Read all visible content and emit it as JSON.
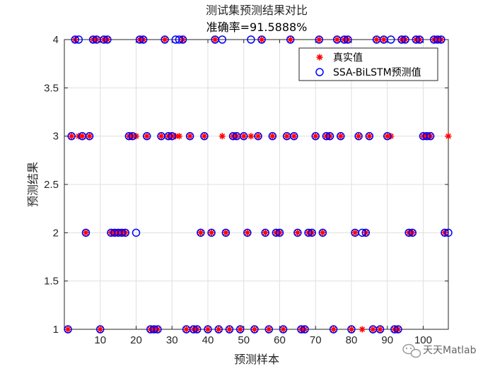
{
  "chart_data": {
    "type": "scatter",
    "title": "测试集预测结果对比",
    "subtitle": "准确率=91.5888%",
    "xlabel": "预测样本",
    "ylabel": "预测结果",
    "xlim": [
      0,
      107
    ],
    "ylim": [
      1,
      4
    ],
    "xticks": [
      10,
      20,
      30,
      40,
      50,
      60,
      70,
      80,
      90,
      100
    ],
    "yticks": [
      1,
      1.5,
      2,
      2.5,
      3,
      3.5,
      4
    ],
    "ytick_labels": [
      "1",
      "1.5",
      "2",
      "2.5",
      "3",
      "3.5",
      "4"
    ],
    "grid": true,
    "legend_position": "top-right",
    "series": [
      {
        "name": "真实值",
        "marker": "asterisk",
        "color": "#ff0000",
        "x": [
          1,
          2,
          3,
          4,
          5,
          6,
          7,
          8,
          9,
          10,
          11,
          12,
          13,
          14,
          15,
          16,
          17,
          18,
          19,
          20,
          21,
          22,
          23,
          24,
          25,
          26,
          27,
          28,
          29,
          30,
          31,
          32,
          33,
          34,
          35,
          36,
          37,
          38,
          39,
          40,
          41,
          42,
          43,
          44,
          45,
          46,
          47,
          48,
          49,
          50,
          51,
          52,
          53,
          54,
          55,
          56,
          57,
          58,
          59,
          60,
          61,
          62,
          63,
          64,
          65,
          66,
          67,
          68,
          69,
          70,
          71,
          72,
          73,
          74,
          75,
          76,
          77,
          78,
          79,
          80,
          81,
          82,
          83,
          84,
          85,
          86,
          87,
          88,
          89,
          90,
          91,
          92,
          93,
          94,
          95,
          96,
          97,
          98,
          99,
          100,
          101,
          102,
          103,
          104,
          105,
          106,
          107
        ],
        "y": [
          1,
          3,
          4,
          3,
          3,
          2,
          3,
          4,
          4,
          1,
          4,
          4,
          2,
          2,
          2,
          2,
          2,
          3,
          3,
          3,
          4,
          4,
          3,
          1,
          1,
          1,
          3,
          4,
          3,
          3,
          3,
          3,
          4,
          1,
          3,
          1,
          1,
          2,
          3,
          1,
          2,
          4,
          1,
          3,
          2,
          1,
          3,
          3,
          1,
          3,
          2,
          3,
          1,
          3,
          4,
          2,
          1,
          3,
          2,
          2,
          1,
          3,
          4,
          3,
          2,
          1,
          1,
          2,
          2,
          3,
          4,
          2,
          3,
          3,
          1,
          4,
          3,
          4,
          4,
          1,
          2,
          3,
          1,
          2,
          3,
          1,
          4,
          1,
          4,
          3,
          3,
          1,
          1,
          4,
          4,
          2,
          2,
          4,
          4,
          3,
          3,
          3,
          4,
          4,
          4,
          2,
          3
        ]
      },
      {
        "name": "SSA-BiLSTM预测值",
        "marker": "circle",
        "color": "#0000ff",
        "x": [
          1,
          2,
          3,
          4,
          5,
          6,
          7,
          8,
          9,
          10,
          11,
          12,
          13,
          14,
          15,
          16,
          17,
          18,
          19,
          20,
          21,
          22,
          23,
          24,
          25,
          26,
          27,
          28,
          29,
          30,
          31,
          32,
          33,
          34,
          35,
          36,
          37,
          38,
          39,
          40,
          41,
          42,
          43,
          44,
          45,
          46,
          47,
          48,
          49,
          50,
          51,
          52,
          53,
          54,
          55,
          56,
          57,
          58,
          59,
          60,
          61,
          62,
          63,
          64,
          65,
          66,
          67,
          68,
          69,
          70,
          71,
          72,
          73,
          74,
          75,
          76,
          77,
          78,
          79,
          80,
          81,
          82,
          83,
          84,
          85,
          86,
          87,
          88,
          89,
          90,
          91,
          92,
          93,
          94,
          95,
          96,
          97,
          98,
          99,
          100,
          101,
          102,
          103,
          104,
          105,
          106,
          107
        ],
        "y": [
          1,
          3,
          4,
          4,
          3,
          2,
          3,
          4,
          4,
          1,
          4,
          4,
          2,
          2,
          2,
          2,
          2,
          3,
          3,
          2,
          4,
          4,
          3,
          1,
          1,
          1,
          3,
          4,
          3,
          3,
          4,
          4,
          4,
          1,
          3,
          1,
          1,
          2,
          3,
          1,
          2,
          4,
          1,
          4,
          2,
          1,
          3,
          3,
          1,
          3,
          2,
          4,
          1,
          3,
          4,
          2,
          1,
          3,
          2,
          2,
          1,
          3,
          4,
          3,
          2,
          1,
          1,
          2,
          2,
          3,
          4,
          2,
          3,
          3,
          1,
          4,
          3,
          4,
          4,
          1,
          2,
          3,
          2,
          2,
          3,
          1,
          4,
          1,
          4,
          3,
          4,
          1,
          1,
          4,
          4,
          2,
          2,
          4,
          4,
          3,
          3,
          3,
          4,
          4,
          4,
          2,
          2
        ]
      }
    ]
  },
  "watermark": {
    "icon": "wechat-icon",
    "text": "天天Matlab"
  },
  "colors": {
    "axis": "#262626",
    "grid": "#dfdfdf",
    "true_marker": "#ff0000",
    "pred_marker": "#0000ff"
  }
}
